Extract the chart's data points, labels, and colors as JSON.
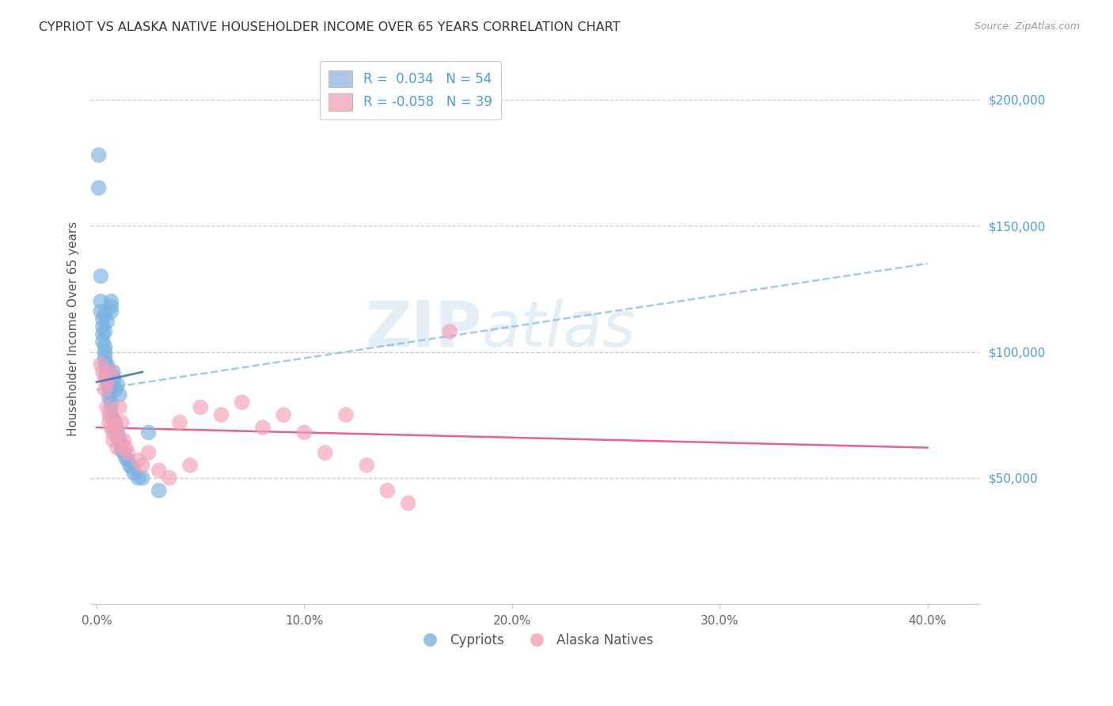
{
  "title": "CYPRIOT VS ALASKA NATIVE HOUSEHOLDER INCOME OVER 65 YEARS CORRELATION CHART",
  "source": "Source: ZipAtlas.com",
  "ylabel": "Householder Income Over 65 years",
  "xlabel_ticks": [
    "0.0%",
    "10.0%",
    "20.0%",
    "30.0%",
    "40.0%"
  ],
  "xlabel_vals": [
    0.0,
    0.1,
    0.2,
    0.3,
    0.4
  ],
  "ylabel_ticks": [
    "$50,000",
    "$100,000",
    "$150,000",
    "$200,000"
  ],
  "ylabel_vals": [
    50000,
    100000,
    150000,
    200000
  ],
  "xlim": [
    -0.003,
    0.425
  ],
  "ylim": [
    0,
    218000
  ],
  "legend1_label1": "R =  0.034   N = 54",
  "legend1_label2": "R = -0.058   N = 39",
  "legend1_color1": "#aec6e8",
  "legend1_color2": "#f4b8c8",
  "watermark_zip": "ZIP",
  "watermark_atlas": "atlas",
  "cypriot_color": "#7ab3e0",
  "alaska_color": "#f4a0b8",
  "cypriot_trend_color": "#85c0e8",
  "alaska_trend_color": "#e8507a",
  "cypriot_trend_solid_color": "#3a7abf",
  "cypriot_x": [
    0.001,
    0.001,
    0.002,
    0.002,
    0.002,
    0.003,
    0.003,
    0.003,
    0.003,
    0.004,
    0.004,
    0.004,
    0.004,
    0.004,
    0.004,
    0.005,
    0.005,
    0.005,
    0.005,
    0.005,
    0.006,
    0.006,
    0.006,
    0.006,
    0.007,
    0.007,
    0.007,
    0.007,
    0.007,
    0.007,
    0.008,
    0.008,
    0.008,
    0.008,
    0.009,
    0.009,
    0.009,
    0.01,
    0.01,
    0.01,
    0.011,
    0.011,
    0.012,
    0.012,
    0.013,
    0.014,
    0.015,
    0.016,
    0.017,
    0.018,
    0.02,
    0.022,
    0.025,
    0.03
  ],
  "cypriot_y": [
    178000,
    165000,
    130000,
    120000,
    116000,
    113000,
    110000,
    107000,
    104000,
    102000,
    100000,
    98000,
    96000,
    115000,
    108000,
    95000,
    93000,
    91000,
    89000,
    112000,
    88000,
    86000,
    84000,
    82000,
    120000,
    118000,
    116000,
    80000,
    78000,
    75000,
    92000,
    90000,
    88000,
    73000,
    71000,
    69000,
    85000,
    68000,
    66000,
    87000,
    65000,
    83000,
    63000,
    61000,
    60000,
    58000,
    57000,
    55000,
    54000,
    52000,
    50000,
    50000,
    68000,
    45000
  ],
  "alaska_x": [
    0.002,
    0.003,
    0.004,
    0.004,
    0.005,
    0.005,
    0.006,
    0.006,
    0.007,
    0.007,
    0.008,
    0.008,
    0.009,
    0.01,
    0.01,
    0.011,
    0.012,
    0.013,
    0.014,
    0.015,
    0.02,
    0.022,
    0.025,
    0.03,
    0.035,
    0.04,
    0.045,
    0.05,
    0.06,
    0.07,
    0.08,
    0.09,
    0.1,
    0.11,
    0.12,
    0.13,
    0.14,
    0.15,
    0.17
  ],
  "alaska_y": [
    95000,
    92000,
    90000,
    85000,
    88000,
    78000,
    75000,
    72000,
    92000,
    70000,
    68000,
    65000,
    72000,
    68000,
    62000,
    78000,
    72000,
    65000,
    62000,
    60000,
    57000,
    55000,
    60000,
    53000,
    50000,
    72000,
    55000,
    78000,
    75000,
    80000,
    70000,
    75000,
    68000,
    60000,
    75000,
    55000,
    45000,
    40000,
    108000
  ],
  "cypriot_trend_x": [
    0.0,
    0.4
  ],
  "cypriot_trend_y": [
    85000,
    135000
  ],
  "alaska_trend_x": [
    0.0,
    0.4
  ],
  "alaska_trend_y": [
    70000,
    62000
  ]
}
